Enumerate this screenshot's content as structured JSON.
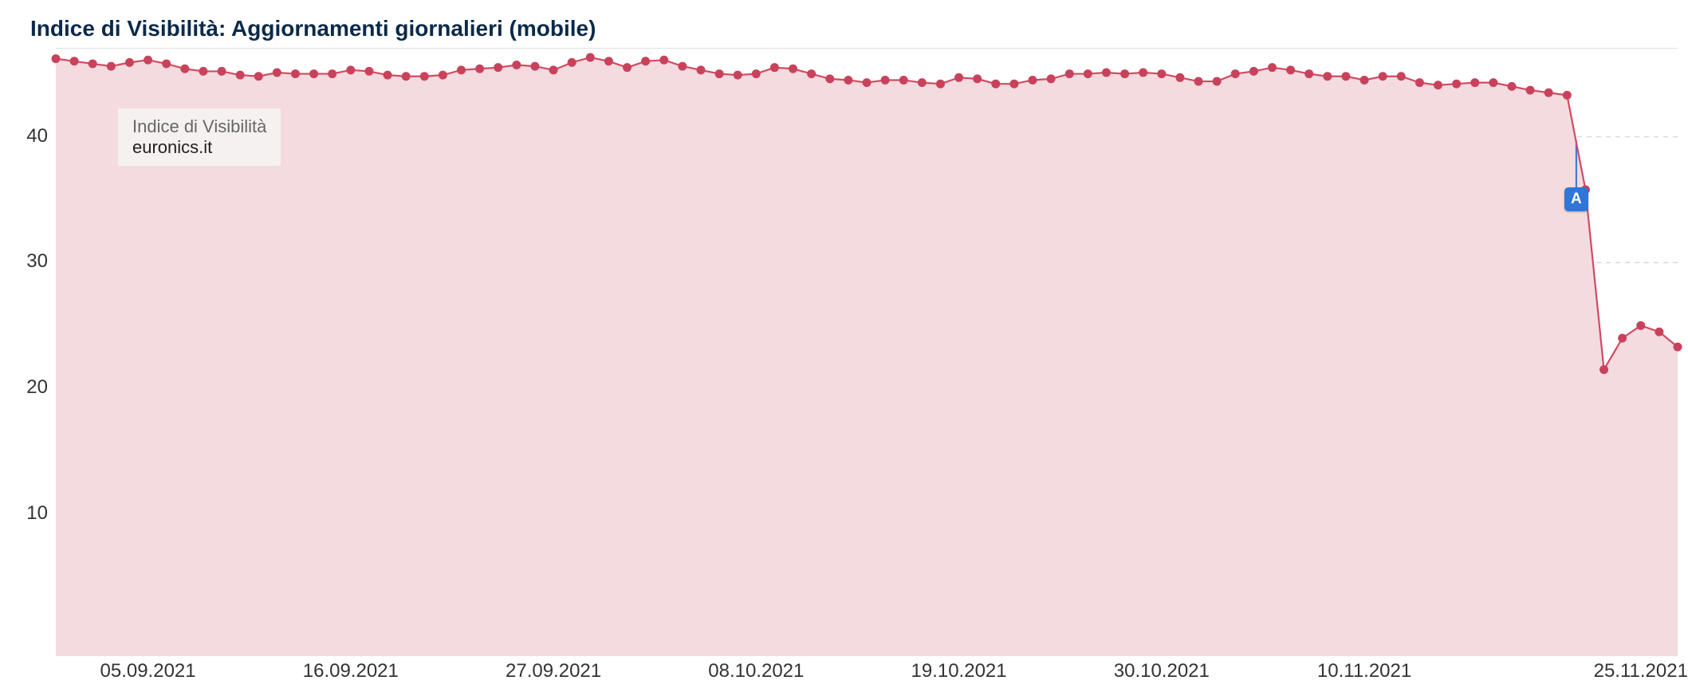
{
  "chart": {
    "type": "area",
    "title": "Indice di Visibilità: Aggiornamenti giornalieri (mobile)",
    "title_color": "#0b2a4a",
    "title_fontsize": 28,
    "background_color": "#ffffff",
    "plot_bg": "#ffffff",
    "area_fill": "#f4dbdf",
    "area_fill_opacity": 1.0,
    "line_color": "#d24a63",
    "line_width": 2.2,
    "marker_color": "#c9425b",
    "marker_radius": 5.5,
    "grid_color": "#d9d9d9",
    "grid_dash": "6,6",
    "axis_label_color": "#333333",
    "axis_label_fontsize": 24,
    "y": {
      "min": 0,
      "max": 47,
      "ticks": [
        10,
        20,
        30,
        40
      ],
      "tick_labels": [
        "10",
        "20",
        "30",
        "40"
      ]
    },
    "x": {
      "min_index": 0,
      "max_index": 88,
      "ticks": [
        5,
        16,
        27,
        38,
        49,
        60,
        71,
        86
      ],
      "tick_labels": [
        "05.09.2021",
        "16.09.2021",
        "27.09.2021",
        "08.10.2021",
        "19.10.2021",
        "30.10.2021",
        "10.11.2021",
        "25.11.2021"
      ]
    },
    "series": [
      {
        "name": "euronics.it",
        "values": [
          46.2,
          46.0,
          45.8,
          45.6,
          45.9,
          46.1,
          45.8,
          45.4,
          45.2,
          45.2,
          44.9,
          44.8,
          45.1,
          45.0,
          45.0,
          45.0,
          45.3,
          45.2,
          44.9,
          44.8,
          44.8,
          44.9,
          45.3,
          45.4,
          45.5,
          45.7,
          45.6,
          45.3,
          45.9,
          46.3,
          46.0,
          45.5,
          46.0,
          46.1,
          45.6,
          45.3,
          45.0,
          44.9,
          45.0,
          45.5,
          45.4,
          45.0,
          44.6,
          44.5,
          44.3,
          44.5,
          44.5,
          44.3,
          44.2,
          44.7,
          44.6,
          44.2,
          44.2,
          44.5,
          44.6,
          45.0,
          45.0,
          45.1,
          45.0,
          45.1,
          45.0,
          44.7,
          44.4,
          44.4,
          45.0,
          45.2,
          45.5,
          45.3,
          45.0,
          44.8,
          44.8,
          44.5,
          44.8,
          44.8,
          44.3,
          44.1,
          44.2,
          44.3,
          44.3,
          44.0,
          43.7,
          43.5,
          43.3,
          35.8,
          21.5,
          24.0,
          25.0,
          24.5,
          23.3
        ]
      }
    ],
    "event_marker": {
      "index": 82.5,
      "label": "A",
      "badge_bg": "#2f76d6",
      "badge_fg": "#ffffff",
      "line_color": "#2f76d6"
    },
    "legend": {
      "title": "Indice di Visibilità",
      "domain": "euronics.it",
      "bg": "rgba(245,245,245,0.85)",
      "title_color": "#666666",
      "domain_color": "#222222",
      "fontsize": 22
    }
  }
}
